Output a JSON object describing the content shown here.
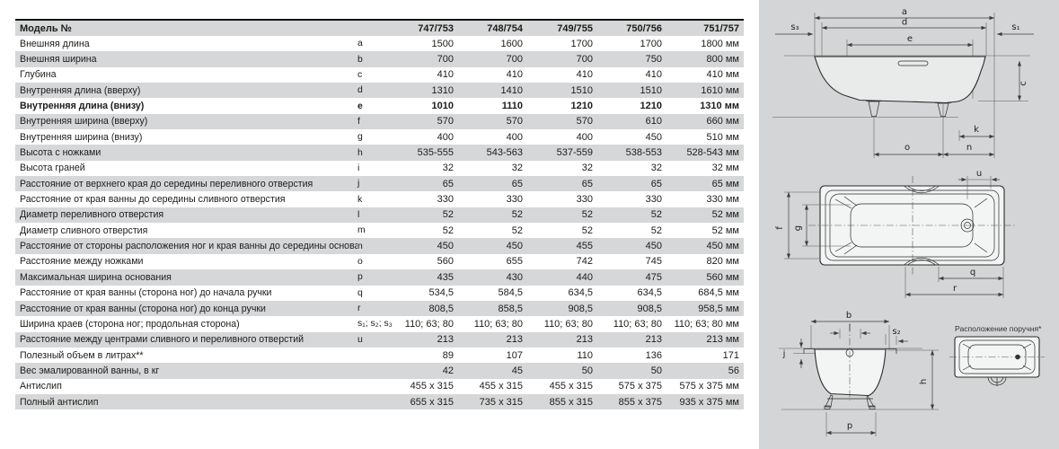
{
  "table": {
    "model_label": "Модель №",
    "columns": [
      "747/753",
      "748/754",
      "749/755",
      "750/756",
      "751/757"
    ],
    "rows": [
      {
        "label": "Внешняя длина",
        "letter": "a",
        "values": [
          "1500",
          "1600",
          "1700",
          "1700",
          "1800 мм"
        ],
        "bold": false
      },
      {
        "label": "Внешняя ширина",
        "letter": "b",
        "values": [
          "700",
          "700",
          "700",
          "750",
          "800 мм"
        ],
        "bold": false
      },
      {
        "label": "Глубина",
        "letter": "c",
        "values": [
          "410",
          "410",
          "410",
          "410",
          "410 мм"
        ],
        "bold": false
      },
      {
        "label": "Внутренняя длина (вверху)",
        "letter": "d",
        "values": [
          "1310",
          "1410",
          "1510",
          "1510",
          "1610 мм"
        ],
        "bold": false
      },
      {
        "label": "Внутренняя длина (внизу)",
        "letter": "e",
        "values": [
          "1010",
          "1110",
          "1210",
          "1210",
          "1310 мм"
        ],
        "bold": true
      },
      {
        "label": "Внутренняя ширина (вверху)",
        "letter": "f",
        "values": [
          "570",
          "570",
          "570",
          "610",
          "660 мм"
        ],
        "bold": false
      },
      {
        "label": "Внутренняя ширина (внизу)",
        "letter": "g",
        "values": [
          "400",
          "400",
          "400",
          "450",
          "510 мм"
        ],
        "bold": false
      },
      {
        "label": "Высота с ножками",
        "letter": "h",
        "values": [
          "535-555",
          "543-563",
          "537-559",
          "538-553",
          "528-543 мм"
        ],
        "bold": false
      },
      {
        "label": "Высота граней",
        "letter": "i",
        "values": [
          "32",
          "32",
          "32",
          "32",
          "32 мм"
        ],
        "bold": false
      },
      {
        "label": "Расстояние от верхнего края до середины переливного отверстия",
        "letter": "j",
        "values": [
          "65",
          "65",
          "65",
          "65",
          "65 мм"
        ],
        "bold": false
      },
      {
        "label": "Расстояние от края ванны до середины сливного отверстия",
        "letter": "k",
        "values": [
          "330",
          "330",
          "330",
          "330",
          "330 мм"
        ],
        "bold": false
      },
      {
        "label": "Диаметр переливного отверстия",
        "letter": "l",
        "values": [
          "52",
          "52",
          "52",
          "52",
          "52 мм"
        ],
        "bold": false
      },
      {
        "label": "Диаметр сливного отверстия",
        "letter": "m",
        "values": [
          "52",
          "52",
          "52",
          "52",
          "52 мм"
        ],
        "bold": false
      },
      {
        "label": "Расстояние от стороны расположения ног и края ванны до середины основания",
        "letter": "n",
        "values": [
          "450",
          "450",
          "455",
          "450",
          "450 мм"
        ],
        "bold": false
      },
      {
        "label": "Расстояние между ножками",
        "letter": "o",
        "values": [
          "560",
          "655",
          "742",
          "745",
          "820 мм"
        ],
        "bold": false
      },
      {
        "label": "Максимальная ширина основания",
        "letter": "p",
        "values": [
          "435",
          "430",
          "440",
          "475",
          "560 мм"
        ],
        "bold": false
      },
      {
        "label": "Расстояние от края ванны (сторона ног) до начала ручки",
        "letter": "q",
        "values": [
          "534,5",
          "584,5",
          "634,5",
          "634,5",
          "684,5 мм"
        ],
        "bold": false
      },
      {
        "label": "Расстояние от края ванны (сторона ног) до конца ручки",
        "letter": "r",
        "values": [
          "808,5",
          "858,5",
          "908,5",
          "908,5",
          "958,5 мм"
        ],
        "bold": false
      },
      {
        "label": "Ширина краев (сторона ног; продольная сторона)",
        "letter": "s₁; s₂; s₃",
        "values": [
          "110; 63; 80",
          "110; 63; 80",
          "110; 63; 80",
          "110; 63; 80",
          "110; 63; 80 мм"
        ],
        "bold": false
      },
      {
        "label": "Расстояние между центрами сливного и переливного отверстий",
        "letter": "u",
        "values": [
          "213",
          "213",
          "213",
          "213",
          "213 мм"
        ],
        "bold": false
      },
      {
        "label": "Полезный объем в литрах**",
        "letter": "",
        "values": [
          "89",
          "107",
          "110",
          "136",
          "171"
        ],
        "bold": false
      },
      {
        "label": "Вес эмалированной ванны, в кг",
        "letter": "",
        "values": [
          "42",
          "45",
          "50",
          "50",
          "56"
        ],
        "bold": false
      },
      {
        "label": "Антислип",
        "letter": "",
        "values": [
          "455 x 315",
          "455 x 315",
          "455 x 315",
          "575 x 375",
          "575 x 375 мм"
        ],
        "bold": false
      },
      {
        "label": "Полный антислип",
        "letter": "",
        "values": [
          "655 x 315",
          "735 x 315",
          "855 x 315",
          "855 x 375",
          "935 x 375 мм"
        ],
        "bold": false
      }
    ]
  },
  "diagrams": {
    "side_view": {
      "a": "a",
      "d": "d",
      "e": "e",
      "s3": "s₃",
      "s1": "s₁",
      "c": "c",
      "k": "k",
      "o": "o",
      "n": "n"
    },
    "top_view": {
      "u": "u",
      "f": "f",
      "g": "g",
      "q": "q",
      "r": "r"
    },
    "end_view": {
      "b": "b",
      "l": "l",
      "s2": "s₂",
      "j": "j",
      "h": "h",
      "p": "p"
    },
    "handle_view": {
      "caption": "Расположение поручня*"
    }
  },
  "colors": {
    "stripe": "#d5d7d8",
    "panel": "#d4d5d6",
    "header_rule": "#141414",
    "text": "#1c1c1b"
  }
}
